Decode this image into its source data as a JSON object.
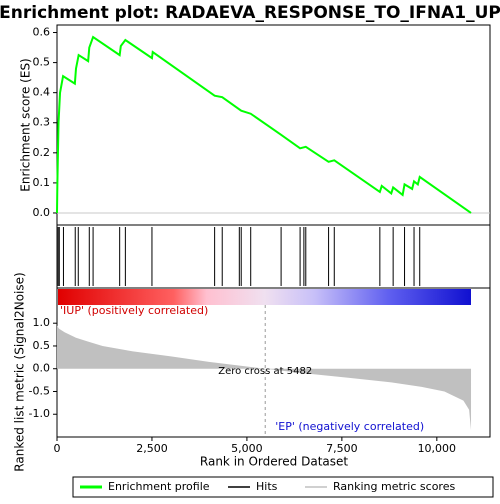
{
  "chart_data": [
    {
      "type": "line",
      "title": "Enrichment plot: RADAEVA_RESPONSE_TO_IFNA1_UP",
      "ylabel": "Enrichment score (ES)",
      "xlim": [
        0,
        11400
      ],
      "ylim": [
        -0.04,
        0.625
      ],
      "yticks": [
        {
          "value": 0,
          "label": "0.0"
        },
        0.1,
        0.2,
        0.3,
        0.4,
        0.5,
        0.6
      ],
      "series": [
        {
          "name": "Enrichment profile",
          "color": "#00ff00",
          "x": [
            0,
            10,
            40,
            80,
            160,
            470,
            500,
            570,
            820,
            850,
            950,
            1650,
            1680,
            1800,
            2500,
            2520,
            4150,
            4350,
            4850,
            5100,
            5900,
            6400,
            6550,
            7150,
            7300,
            8500,
            8550,
            8800,
            8850,
            9100,
            9150,
            9350,
            9400,
            9500,
            9550,
            10900
          ],
          "values": [
            0,
            0.1,
            0.3,
            0.4,
            0.455,
            0.43,
            0.48,
            0.525,
            0.505,
            0.55,
            0.585,
            0.525,
            0.555,
            0.575,
            0.515,
            0.535,
            0.39,
            0.385,
            0.34,
            0.33,
            0.26,
            0.215,
            0.22,
            0.17,
            0.175,
            0.07,
            0.09,
            0.065,
            0.085,
            0.06,
            0.095,
            0.08,
            0.105,
            0.095,
            0.12,
            0
          ]
        },
        {
          "name": "Hits",
          "color": "#000000",
          "x": [
            0,
            30,
            60,
            170,
            480,
            560,
            850,
            950,
            1650,
            1800,
            2500,
            4150,
            4350,
            4800,
            4850,
            5100,
            5900,
            6400,
            6500,
            6550,
            7150,
            7300,
            8500,
            8850,
            9150,
            9400,
            9550
          ]
        }
      ]
    },
    {
      "type": "area",
      "ylabel": "Ranked list metric (Signal2Noise)",
      "xlabel": "Rank in Ordered Dataset",
      "xlim": [
        0,
        11400
      ],
      "xticks": [
        0,
        {
          "value": 2500,
          "label": "2,500"
        },
        {
          "value": 5000,
          "label": "5,000"
        },
        {
          "value": 7500,
          "label": "7,500"
        },
        {
          "value": 10000,
          "label": "10,000"
        }
      ],
      "ylim": [
        -1.5,
        1.4
      ],
      "yticks": [
        {
          "value": 1,
          "label": "1.0"
        },
        0.5,
        {
          "value": 0,
          "label": "0.0"
        },
        -0.5,
        {
          "value": -1,
          "label": "-1.0"
        }
      ],
      "series": [
        {
          "name": "Ranking metric scores",
          "color": "#c0c0c0",
          "x": [
            0,
            50,
            200,
            500,
            800,
            1200,
            2000,
            3000,
            4000,
            5000,
            5482,
            6500,
            7700,
            8800,
            9600,
            10200,
            10700,
            10850,
            10900
          ],
          "values": [
            0.95,
            0.88,
            0.8,
            0.68,
            0.6,
            0.5,
            0.38,
            0.27,
            0.15,
            0.05,
            0,
            -0.1,
            -0.2,
            -0.3,
            -0.4,
            -0.5,
            -0.7,
            -0.9,
            -1.35
          ]
        }
      ],
      "zero_cross": 5482,
      "annotations": [
        "'IUP' (positively correlated)",
        "Zero cross at 5482",
        "'EP' (negatively correlated)"
      ]
    }
  ]
}
